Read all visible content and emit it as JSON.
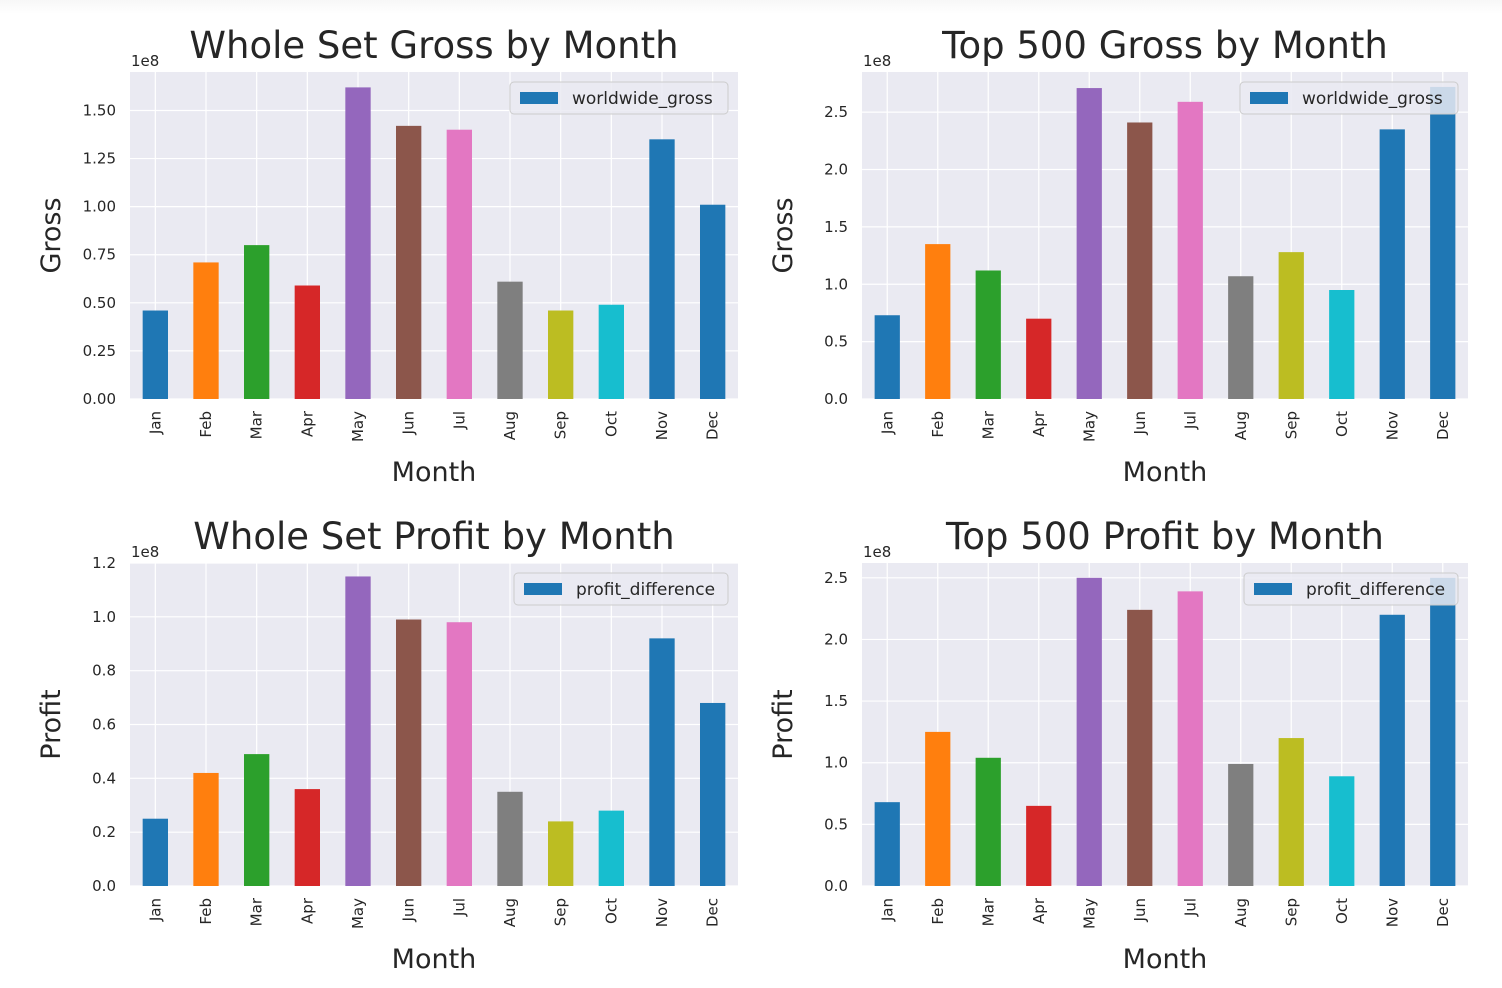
{
  "chart_data": [
    {
      "type": "bar",
      "title": "Whole Set Gross by Month",
      "xlabel": "Month",
      "ylabel": "Gross",
      "multiplier": "1e8",
      "legend": "worldwide_gross",
      "legend_position": "top-right",
      "grid": true,
      "categories": [
        "Jan",
        "Feb",
        "Mar",
        "Apr",
        "May",
        "Jun",
        "Jul",
        "Aug",
        "Sep",
        "Oct",
        "Nov",
        "Dec"
      ],
      "values": [
        0.46,
        0.71,
        0.8,
        0.59,
        1.62,
        1.42,
        1.4,
        0.61,
        0.46,
        0.49,
        1.35,
        1.01
      ],
      "ylim": [
        0,
        1.7
      ],
      "yticks": [
        "0.00",
        "0.25",
        "0.50",
        "0.75",
        "1.00",
        "1.25",
        "1.50"
      ],
      "ytick_values": [
        0,
        0.25,
        0.5,
        0.75,
        1.0,
        1.25,
        1.5
      ]
    },
    {
      "type": "bar",
      "title": "Top 500 Gross by Month",
      "xlabel": "Month",
      "ylabel": "Gross",
      "multiplier": "1e8",
      "legend": "worldwide_gross",
      "legend_position": "top-right",
      "grid": true,
      "categories": [
        "Jan",
        "Feb",
        "Mar",
        "Apr",
        "May",
        "Jun",
        "Jul",
        "Aug",
        "Sep",
        "Oct",
        "Nov",
        "Dec"
      ],
      "values": [
        0.73,
        1.35,
        1.12,
        0.7,
        2.71,
        2.41,
        2.59,
        1.07,
        1.28,
        0.95,
        2.35,
        2.72
      ],
      "ylim": [
        0,
        2.85
      ],
      "yticks": [
        "0.0",
        "0.5",
        "1.0",
        "1.5",
        "2.0",
        "2.5"
      ],
      "ytick_values": [
        0,
        0.5,
        1.0,
        1.5,
        2.0,
        2.5
      ]
    },
    {
      "type": "bar",
      "title": "Whole Set Profit by Month",
      "xlabel": "Month",
      "ylabel": "Profit",
      "multiplier": "1e8",
      "legend": "profit_difference",
      "legend_position": "top-right",
      "grid": true,
      "categories": [
        "Jan",
        "Feb",
        "Mar",
        "Apr",
        "May",
        "Jun",
        "Jul",
        "Aug",
        "Sep",
        "Oct",
        "Nov",
        "Dec"
      ],
      "values": [
        0.25,
        0.42,
        0.49,
        0.36,
        1.15,
        0.99,
        0.98,
        0.35,
        0.24,
        0.28,
        0.92,
        0.68
      ],
      "ylim": [
        0,
        1.2
      ],
      "yticks": [
        "0.0",
        "0.2",
        "0.4",
        "0.6",
        "0.8",
        "1.0",
        "1.2"
      ],
      "ytick_values": [
        0,
        0.2,
        0.4,
        0.6,
        0.8,
        1.0,
        1.2
      ]
    },
    {
      "type": "bar",
      "title": "Top 500 Profit by Month",
      "xlabel": "Month",
      "ylabel": "Profit",
      "multiplier": "1e8",
      "legend": "profit_difference",
      "legend_position": "top-right",
      "grid": true,
      "categories": [
        "Jan",
        "Feb",
        "Mar",
        "Apr",
        "May",
        "Jun",
        "Jul",
        "Aug",
        "Sep",
        "Oct",
        "Nov",
        "Dec"
      ],
      "values": [
        0.68,
        1.25,
        1.04,
        0.65,
        2.5,
        2.24,
        2.39,
        0.99,
        1.2,
        0.89,
        2.2,
        2.5
      ],
      "ylim": [
        0,
        2.62
      ],
      "yticks": [
        "0.0",
        "0.5",
        "1.0",
        "1.5",
        "2.0",
        "2.5"
      ],
      "ytick_values": [
        0,
        0.5,
        1.0,
        1.5,
        2.0,
        2.5
      ]
    }
  ],
  "colors": {
    "bars": [
      "#1f77b4",
      "#ff7f0e",
      "#2ca02c",
      "#d62728",
      "#9467bd",
      "#8c564b",
      "#e377c2",
      "#7f7f7f",
      "#bcbd22",
      "#17becf",
      "#1f77b4",
      "#1f77b4"
    ],
    "legend_swatch": "#1f77b4",
    "plot_background": "#eaeaf2",
    "grid": "#ffffff",
    "text": "#262626"
  }
}
